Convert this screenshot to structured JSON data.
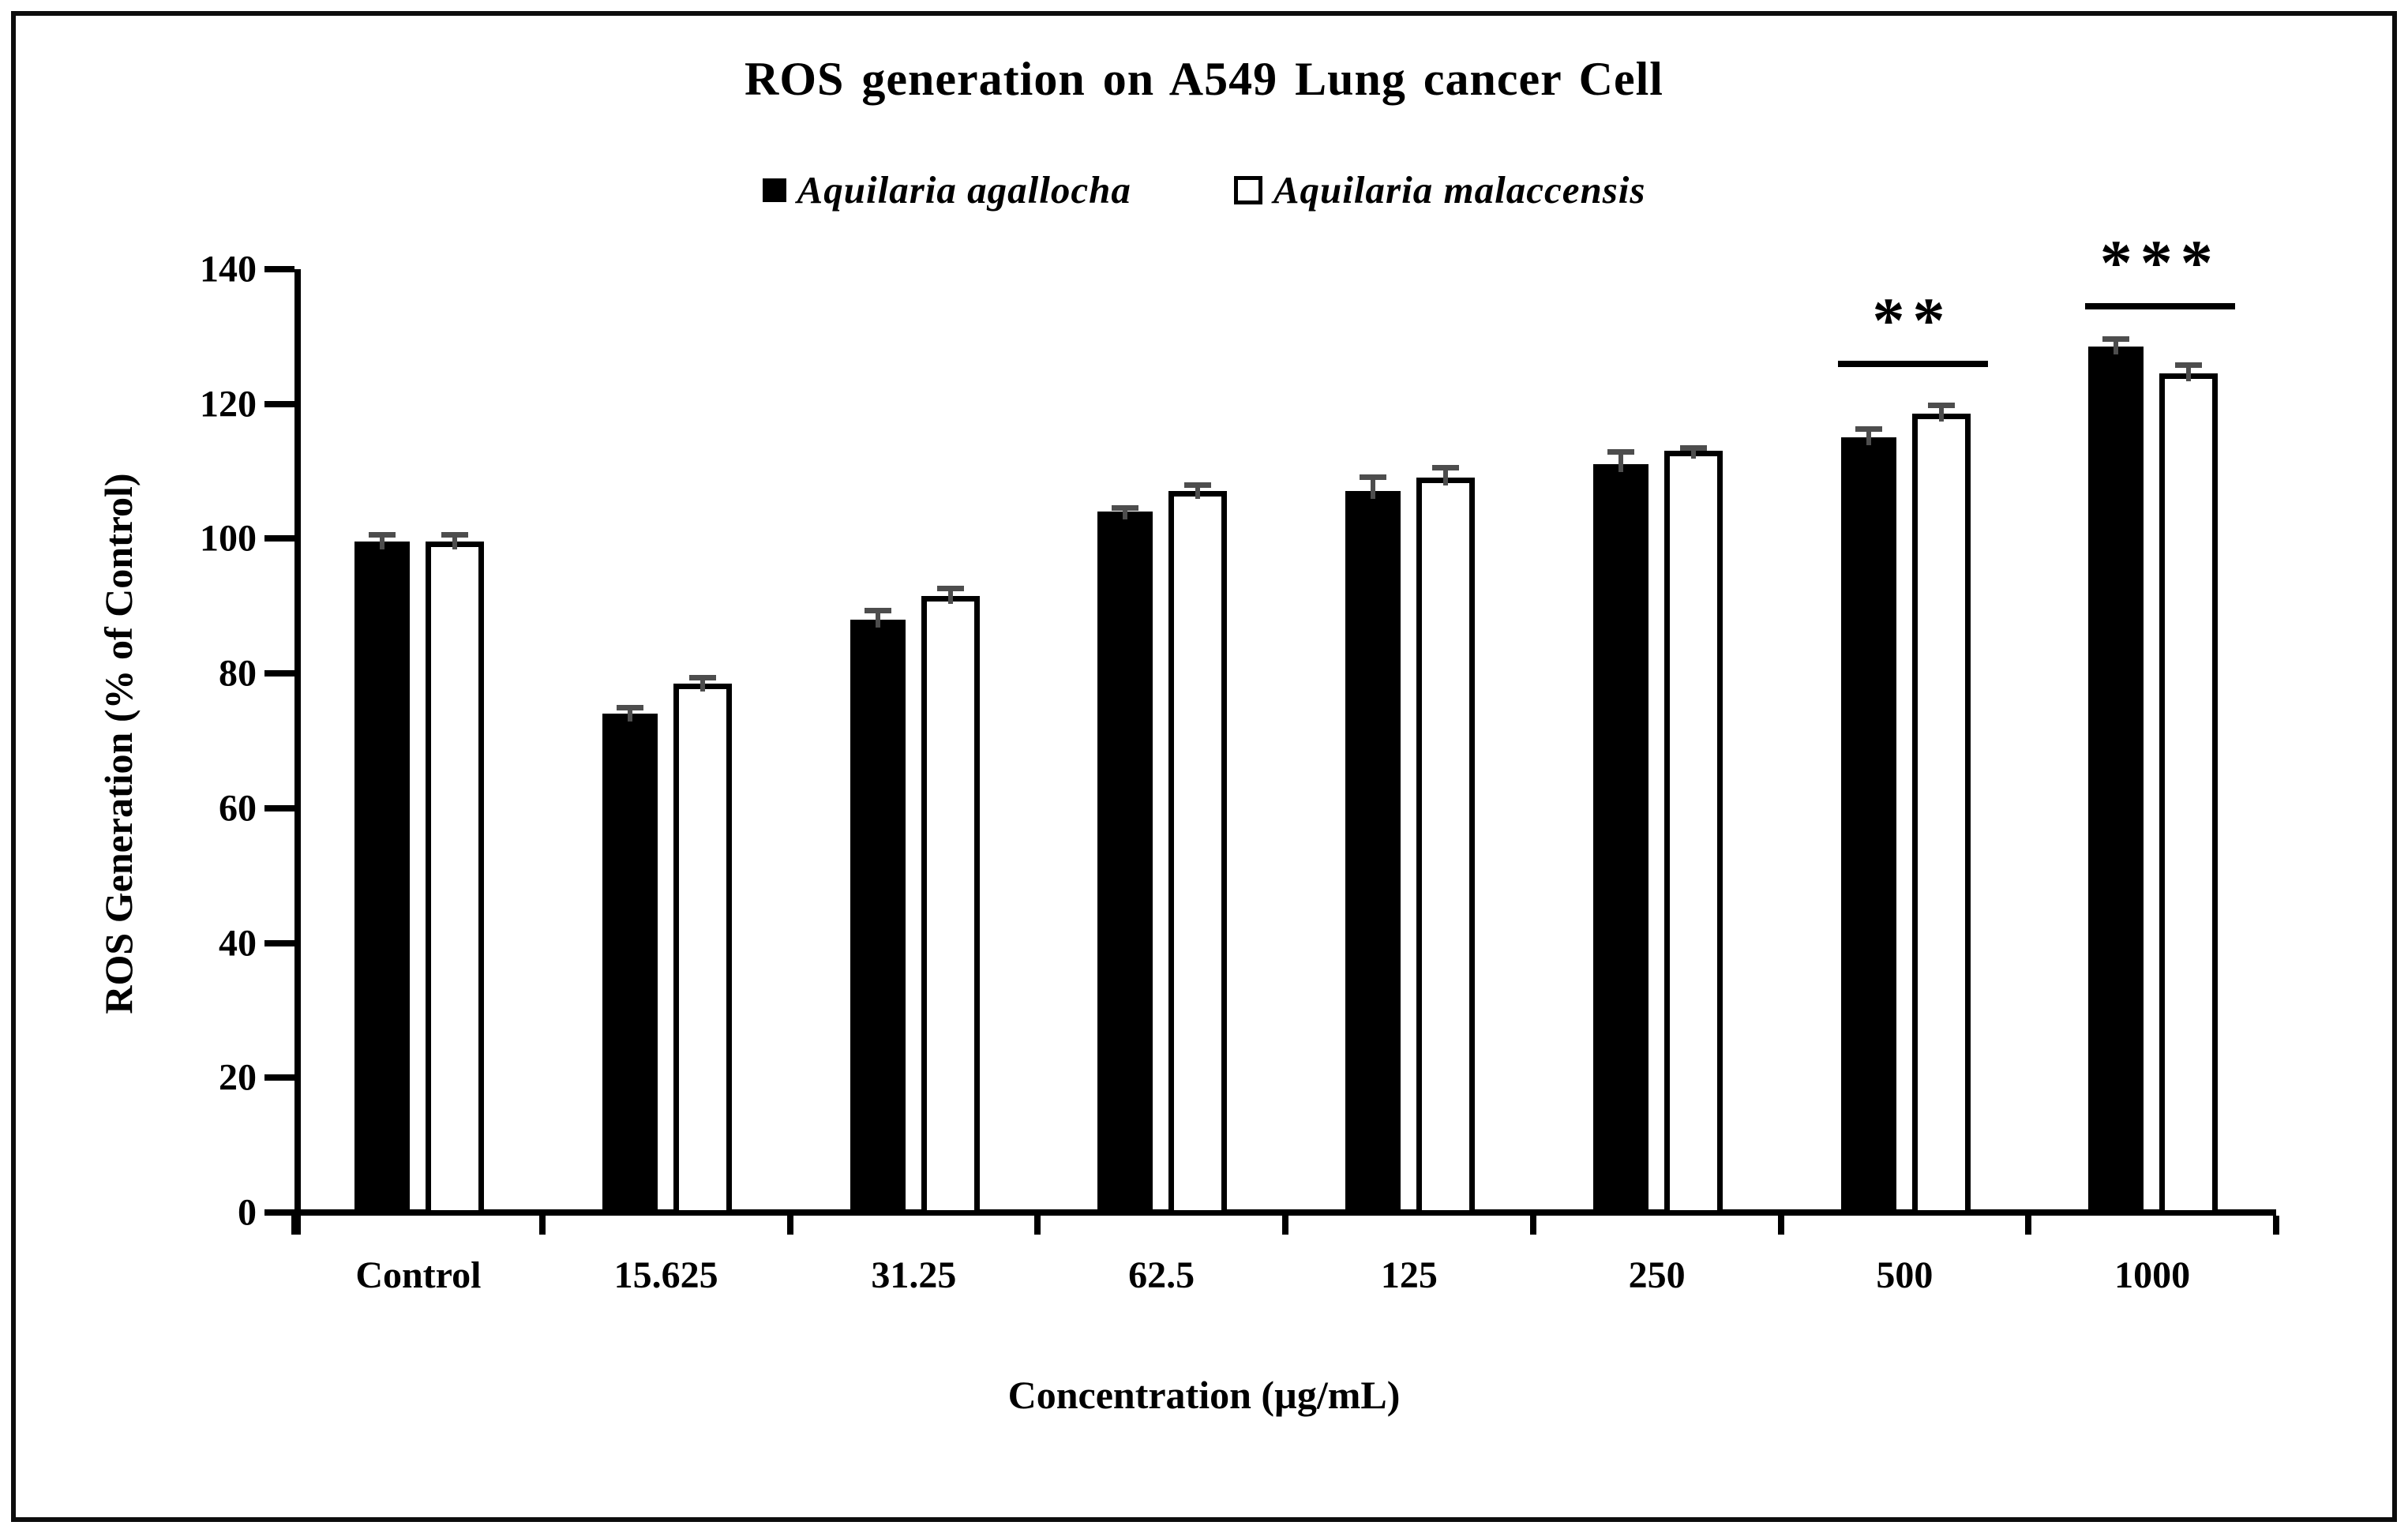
{
  "figure": {
    "title": "ROS generation on A549 Lung cancer Cell",
    "x_axis_title": "Concentration (µg/mL)",
    "y_axis_title": "ROS Generation (% of Control)"
  },
  "legend": {
    "items": [
      {
        "label": "Aquilaria agallocha",
        "marker": "filled-black-square"
      },
      {
        "label": "Aquilaria malaccensis",
        "marker": "open-white-square"
      }
    ]
  },
  "colors": {
    "bar_fill_series1": "#000000",
    "bar_fill_series2": "#ffffff",
    "bar_stroke": "#000000",
    "error_bar": "#4d4d4d",
    "frame": "#0d0d0d",
    "background": "#ffffff",
    "text": "#000000"
  },
  "chart_data": {
    "type": "bar",
    "title": "ROS generation on A549 Lung cancer Cell",
    "xlabel": "Concentration (µg/mL)",
    "ylabel": "ROS Generation (% of Control)",
    "ylim": [
      0,
      140
    ],
    "yticks": [
      0,
      20,
      40,
      60,
      80,
      100,
      120,
      140
    ],
    "grid": false,
    "legend_position": "top-center",
    "categories": [
      "Control",
      "15.625",
      "31.25",
      "62.5",
      "125",
      "250",
      "500",
      "1000"
    ],
    "series": [
      {
        "name": "Aquilaria agallocha",
        "style": "filled",
        "values": [
          100,
          74.5,
          88.5,
          104.5,
          107.5,
          111.5,
          115.5,
          129
        ],
        "errors": [
          1.4,
          1.3,
          1.7,
          0.9,
          2.5,
          2.3,
          1.7,
          1.5
        ]
      },
      {
        "name": "Aquilaria malaccensis",
        "style": "open",
        "values": [
          100,
          79,
          92,
          107.5,
          109.5,
          113.5,
          119,
          125
        ],
        "errors": [
          1.4,
          1.2,
          1.5,
          1.3,
          1.9,
          0.9,
          1.7,
          1.7
        ]
      }
    ],
    "significance": [
      {
        "label": "**",
        "category": "500",
        "line_value": 126
      },
      {
        "label": "***",
        "category": "1000",
        "line_value": 134.5
      }
    ]
  }
}
